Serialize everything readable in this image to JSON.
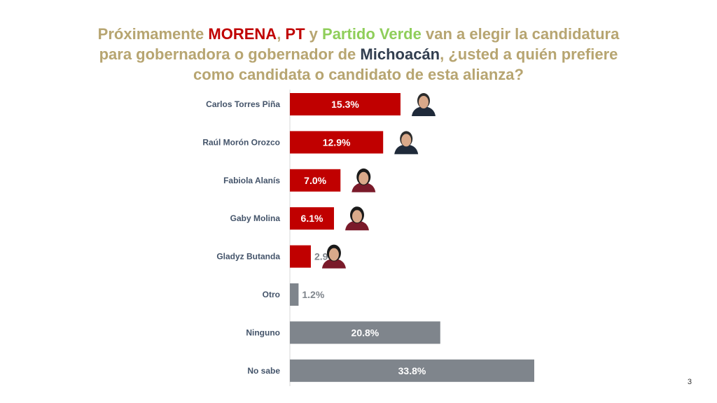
{
  "title": {
    "p1": "Próximamente ",
    "morena": "MORENA",
    "p2": ", ",
    "pt": "PT",
    "p3": " y ",
    "verde": "Partido Verde",
    "p4": " van a elegir la candidatura",
    "p5": "para gobernadora o gobernador de ",
    "michoacan": "Michoacán",
    "p6": ", ¿usted a quién prefiere",
    "p7": "como candidata o candidato de esta alianza?"
  },
  "page_number": "3",
  "chart_data": {
    "type": "bar",
    "orientation": "horizontal",
    "categories": [
      "Carlos Torres Piña",
      "Raúl Morón Orozco",
      "Fabiola Alanís",
      "Gaby Molina",
      "Gladyz Butanda",
      "Otro",
      "Ninguno",
      "No sabe"
    ],
    "values": [
      15.3,
      12.9,
      7.0,
      6.1,
      2.9,
      1.2,
      20.8,
      33.8
    ],
    "data_labels": [
      "15.3%",
      "12.9%",
      "7.0%",
      "6.1%",
      "2.9%",
      "1.2%",
      "20.8%",
      "33.8%"
    ],
    "bar_colors": [
      "#c00000",
      "#c00000",
      "#c00000",
      "#c00000",
      "#c00000",
      "#7f858c",
      "#7f858c",
      "#7f858c"
    ],
    "has_photo": [
      true,
      true,
      true,
      true,
      true,
      false,
      false,
      false
    ],
    "label_color": "#44546a",
    "grid": false,
    "legend": false
  }
}
